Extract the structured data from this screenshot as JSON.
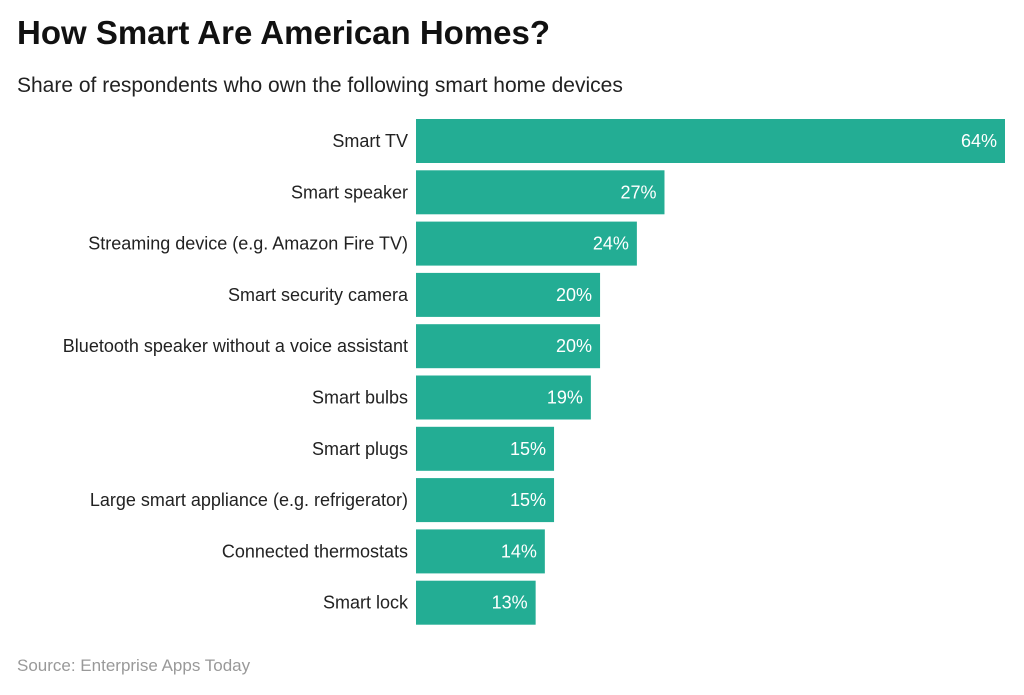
{
  "title": "How Smart Are American Homes?",
  "subtitle": "Share of respondents who own the following smart home devices",
  "source": "Source: Enterprise Apps Today",
  "chart_data": {
    "type": "bar",
    "orientation": "horizontal",
    "title": "How Smart Are American Homes?",
    "subtitle": "Share of respondents who own the following smart home devices",
    "categories": [
      "Smart TV",
      "Smart speaker",
      "Streaming device (e.g. Amazon Fire TV)",
      "Smart security camera",
      "Bluetooth speaker without a voice assistant",
      "Smart bulbs",
      "Smart plugs",
      "Large smart appliance (e.g. refrigerator)",
      "Connected thermostats",
      "Smart lock"
    ],
    "values": [
      64,
      27,
      24,
      20,
      20,
      19,
      15,
      15,
      14,
      13
    ],
    "value_suffix": "%",
    "xlim": [
      0,
      64
    ],
    "grid": false,
    "bar_color": "#23ad94"
  }
}
